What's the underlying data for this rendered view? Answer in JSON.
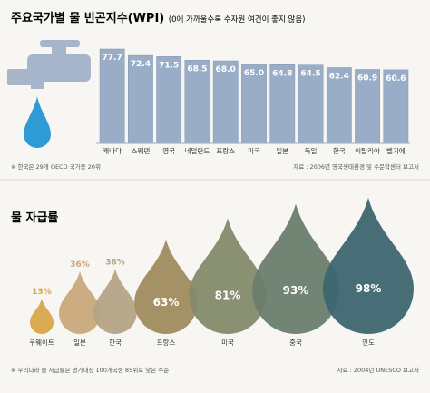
{
  "chart_data": [
    {
      "type": "bar",
      "title": "주요국가별 물 빈곤지수(WPI)",
      "subtitle": "(0에 가까울수록 수자원 여건이 좋지 않음)",
      "categories": [
        "캐나다",
        "스웨덴",
        "영국",
        "네덜란드",
        "프랑스",
        "미국",
        "일본",
        "독일",
        "한국",
        "이탈리아",
        "벨기에"
      ],
      "values": [
        77.7,
        72.4,
        71.5,
        68.5,
        68.0,
        65.0,
        64.8,
        64.5,
        62.4,
        60.9,
        60.6
      ],
      "note": "※ 한국은 29개 OECD 국가중 20위",
      "source": "자료 : 2006년 영국생태환경 및 수문학센터 보고서",
      "colors": {
        "bar": "#9aadc7",
        "bar_edge": "#7f96b5",
        "faucet": "#a6b5c9",
        "water": "#2e9bd6"
      },
      "icons": [
        "faucet-icon",
        "water-drop-icon"
      ]
    },
    {
      "type": "bubble",
      "title": "물 자급률",
      "categories": [
        "쿠웨이트",
        "일본",
        "한국",
        "프랑스",
        "미국",
        "중국",
        "인도"
      ],
      "values": [
        13,
        36,
        38,
        63,
        81,
        93,
        98
      ],
      "value_labels": [
        "13%",
        "36%",
        "38%",
        "63%",
        "81%",
        "93%",
        "98%"
      ],
      "note": "※ 우리나라 물 자급률은 평가대상 100개국중 85위로 낮은 수준",
      "source": "자료 : 2004년 UNESCO 보고서",
      "colors": [
        "#d9a64a",
        "#c9a97a",
        "#b4a386",
        "#a08b5e",
        "#848a6a",
        "#6a7d6d",
        "#3d6670"
      ]
    }
  ]
}
